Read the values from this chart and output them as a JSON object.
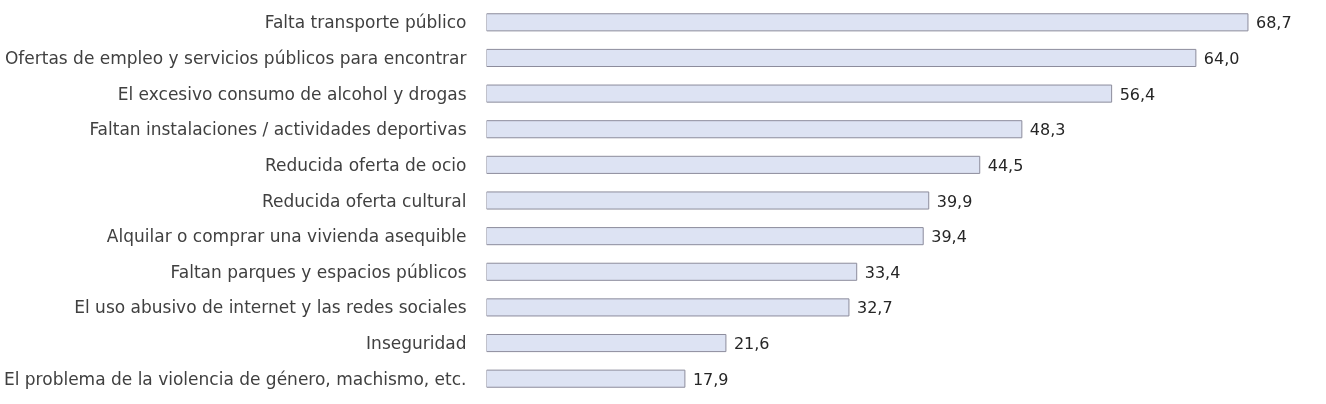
{
  "chart_data": {
    "type": "bar",
    "orientation": "horizontal",
    "categories": [
      "Falta transporte público",
      "Ofertas de empleo y servicios públicos para encontrar",
      "El excesivo consumo de alcohol y drogas",
      "Faltan instalaciones / actividades deportivas",
      "Reducida oferta de ocio",
      "Reducida oferta cultural",
      "Alquilar o comprar una vivienda asequible",
      "Faltan parques y espacios públicos",
      "El uso abusivo de internet y las redes sociales",
      "Inseguridad",
      "El problema de la violencia de género, machismo, etc."
    ],
    "values": [
      68.7,
      64.0,
      56.4,
      48.3,
      44.5,
      39.9,
      39.4,
      33.4,
      32.7,
      21.6,
      17.9
    ],
    "value_labels": [
      "68,7",
      "64,0",
      "56,4",
      "48,3",
      "44,5",
      "39,9",
      "39,4",
      "33,4",
      "32,7",
      "21,6",
      "17,9"
    ],
    "color": "#dde3f3",
    "grid": false,
    "tick_labels": "y"
  }
}
